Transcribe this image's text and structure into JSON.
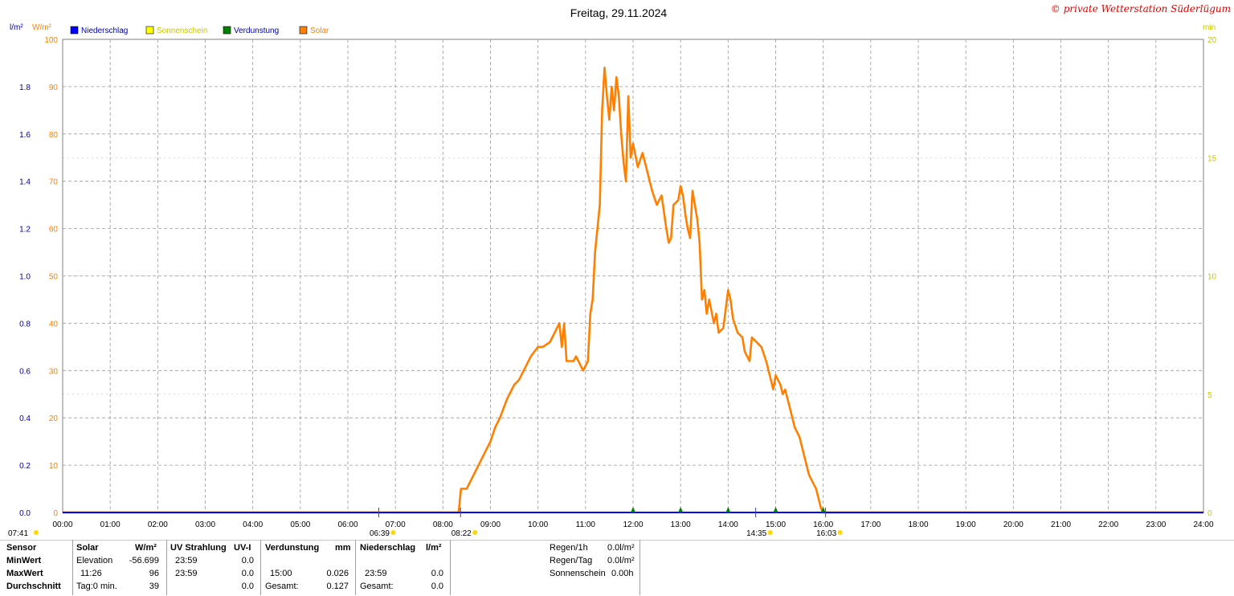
{
  "chart_data": {
    "type": "line",
    "title": "Freitag, 29.11.2024",
    "copyright": "© private Wetterstation Süderlügum",
    "left_axis_units": [
      "l/m²",
      "W/m²"
    ],
    "right_axis_unit": "min",
    "legend": [
      {
        "name": "Niederschlag",
        "color": "#0000ff"
      },
      {
        "name": "Sonnenschein",
        "color": "#ffff00"
      },
      {
        "name": "Verdunstung",
        "color": "#008000"
      },
      {
        "name": "Solar",
        "color": "#ff7f00"
      }
    ],
    "x_range": [
      0,
      24
    ],
    "x_ticks": [
      "00:00",
      "01:00",
      "02:00",
      "03:00",
      "04:00",
      "05:00",
      "06:00",
      "07:00",
      "08:00",
      "09:00",
      "10:00",
      "11:00",
      "12:00",
      "13:00",
      "14:00",
      "15:00",
      "16:00",
      "17:00",
      "18:00",
      "19:00",
      "20:00",
      "21:00",
      "22:00",
      "23:00",
      "24:00"
    ],
    "y_rain_range": [
      0,
      2.0
    ],
    "y_rain_ticks": [
      "0.0",
      "0.2",
      "0.4",
      "0.6",
      "0.8",
      "1.0",
      "1.2",
      "1.4",
      "1.6",
      "1.8"
    ],
    "y_solar_range": [
      0,
      100
    ],
    "y_solar_ticks": [
      "0",
      "10",
      "20",
      "30",
      "40",
      "50",
      "60",
      "70",
      "80",
      "90",
      "100"
    ],
    "y_min_range": [
      0,
      20
    ],
    "y_min_ticks": [
      "0",
      "5",
      "10",
      "15",
      "20"
    ],
    "grid": true,
    "sun_markers": [
      {
        "label": "07:41",
        "x": 0
      },
      {
        "label": "06:39",
        "x": 6.65
      },
      {
        "label": "08:22",
        "x": 8.37
      },
      {
        "label": "14:35",
        "x": 14.58
      },
      {
        "label": "16:03",
        "x": 16.05
      }
    ],
    "evaporation_marks_x": [
      12.0,
      13.0,
      14.0,
      15.0,
      16.0
    ],
    "series": [
      {
        "name": "Solar",
        "color": "#ff7f00",
        "x": [
          0,
          8.33,
          8.38,
          8.5,
          8.6,
          8.75,
          8.85,
          9.0,
          9.1,
          9.2,
          9.35,
          9.5,
          9.6,
          9.7,
          9.85,
          10.0,
          10.1,
          10.25,
          10.35,
          10.45,
          10.5,
          10.55,
          10.6,
          10.75,
          10.8,
          10.9,
          10.95,
          11.05,
          11.1,
          11.15,
          11.2,
          11.3,
          11.35,
          11.4,
          11.45,
          11.5,
          11.55,
          11.6,
          11.65,
          11.7,
          11.75,
          11.8,
          11.85,
          11.9,
          11.95,
          12.0,
          12.1,
          12.2,
          12.3,
          12.4,
          12.5,
          12.6,
          12.7,
          12.75,
          12.8,
          12.85,
          12.95,
          13.0,
          13.05,
          13.1,
          13.15,
          13.2,
          13.25,
          13.35,
          13.4,
          13.45,
          13.5,
          13.55,
          13.6,
          13.7,
          13.75,
          13.8,
          13.9,
          14.0,
          14.05,
          14.1,
          14.2,
          14.3,
          14.35,
          14.45,
          14.5,
          14.6,
          14.7,
          14.8,
          14.85,
          14.9,
          14.95,
          15.0,
          15.1,
          15.15,
          15.2,
          15.3,
          15.4,
          15.5,
          15.6,
          15.7,
          15.8,
          15.85,
          15.9,
          15.95,
          16.0,
          16.03,
          24
        ],
        "values": [
          0,
          0,
          5,
          5,
          7,
          10,
          12,
          15,
          18,
          20,
          24,
          27,
          28,
          30,
          33,
          35,
          35,
          36,
          38,
          40,
          35,
          40,
          32,
          32,
          33,
          31,
          30,
          32,
          42,
          45,
          55,
          65,
          85,
          94,
          88,
          83,
          90,
          85,
          92,
          88,
          80,
          74,
          70,
          88,
          75,
          78,
          73,
          76,
          72,
          68,
          65,
          67,
          60,
          57,
          58,
          65,
          66,
          69,
          67,
          63,
          60,
          58,
          68,
          62,
          57,
          45,
          47,
          42,
          45,
          40,
          42,
          38,
          39,
          47,
          45,
          41,
          38,
          37,
          34,
          32,
          37,
          36,
          35,
          32,
          30,
          28,
          26,
          29,
          27,
          25,
          26,
          22,
          18,
          16,
          12,
          8,
          6,
          5,
          3,
          1,
          0,
          0,
          0
        ]
      },
      {
        "name": "Niederschlag",
        "color": "#0000ff",
        "x": [
          0,
          24
        ],
        "values": [
          0,
          0
        ]
      }
    ]
  },
  "stats": {
    "headers": {
      "sensor": "Sensor",
      "solar": "Solar",
      "solar_unit": "W/m²",
      "uv": "UV Strahlung",
      "uv_unit": "UV-I",
      "evap": "Verdunstung",
      "evap_unit": "mm",
      "rain": "Niederschlag",
      "rain_unit": "l/m²"
    },
    "rows": [
      {
        "label": "MinWert",
        "solar_time": "Elevation",
        "solar_val": "-56.699",
        "uv_time": "23:59",
        "uv_val": "0.0",
        "evap_time": "",
        "evap_val": "",
        "rain_time": "",
        "rain_val": ""
      },
      {
        "label": "MaxWert",
        "solar_time": "11:26",
        "solar_val": "96",
        "uv_time": "23:59",
        "uv_val": "0.0",
        "evap_time": "15:00",
        "evap_val": "0.026",
        "rain_time": "23:59",
        "rain_val": "0.0"
      },
      {
        "label": "Durchschnitt",
        "solar_time": "Tag:0 min.",
        "solar_val": "39",
        "uv_time": "",
        "uv_val": "0.0",
        "evap_time": "Gesamt:",
        "evap_val": "0.127",
        "rain_time": "Gesamt:",
        "rain_val": "0.0"
      }
    ],
    "summary": [
      {
        "label": "Regen/1h",
        "value": "0.0l/m²"
      },
      {
        "label": "Regen/Tag",
        "value": "0.0l/m²"
      },
      {
        "label": "Sonnenschein",
        "value": "0.00h"
      }
    ]
  }
}
